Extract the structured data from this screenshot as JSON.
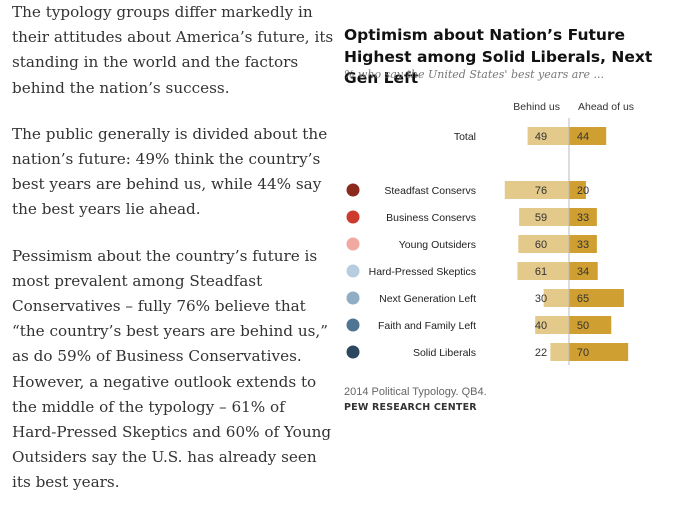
{
  "article": {
    "paragraphs": [
      "The typology groups differ markedly in their attitudes about America’s future, its standing in the world and the factors behind the nation’s success.",
      "The public generally is divided about the nation’s future: 49% think the country’s best years are behind us, while 44% say the best years lie ahead.",
      "Pessimism about the country’s future is most prevalent among Steadfast Conservatives – fully 76% believe that “the country’s best years are behind us,” as do 59% of Business Conservatives. However, a negative outlook extends to the middle of the typology – 61% of Hard-Pressed Skeptics and 60% of Young Outsiders say the U.S. has already seen its best years."
    ]
  },
  "chart_data": {
    "type": "bar",
    "title": "Optimism about Nation’s Future Highest among Solid Liberals, Next Gen Left",
    "subtitle": "% who say the United States' best years are ...",
    "column_headers": [
      "Behind us",
      "Ahead of us"
    ],
    "categories": [
      "Total",
      "Steadfast Conservs",
      "Business Conservs",
      "Young Outsiders",
      "Hard-Pressed Skeptics",
      "Next Generation Left",
      "Faith and Family Left",
      "Solid Liberals"
    ],
    "series": [
      {
        "name": "Behind us",
        "values": [
          49,
          76,
          59,
          60,
          61,
          30,
          40,
          22
        ],
        "color": "#e3c98a"
      },
      {
        "name": "Ahead of us",
        "values": [
          44,
          20,
          33,
          33,
          34,
          65,
          50,
          70
        ],
        "color": "#cf9f32"
      }
    ],
    "group_marker_colors": [
      null,
      "#8b2a1c",
      "#cc3b2e",
      "#f0a8a0",
      "#b8cde0",
      "#8fadc5",
      "#4f7593",
      "#2c4760"
    ],
    "layout": "diverging",
    "source": "2014 Political Typology. QB4.",
    "brand": "PEW RESEARCH CENTER"
  }
}
